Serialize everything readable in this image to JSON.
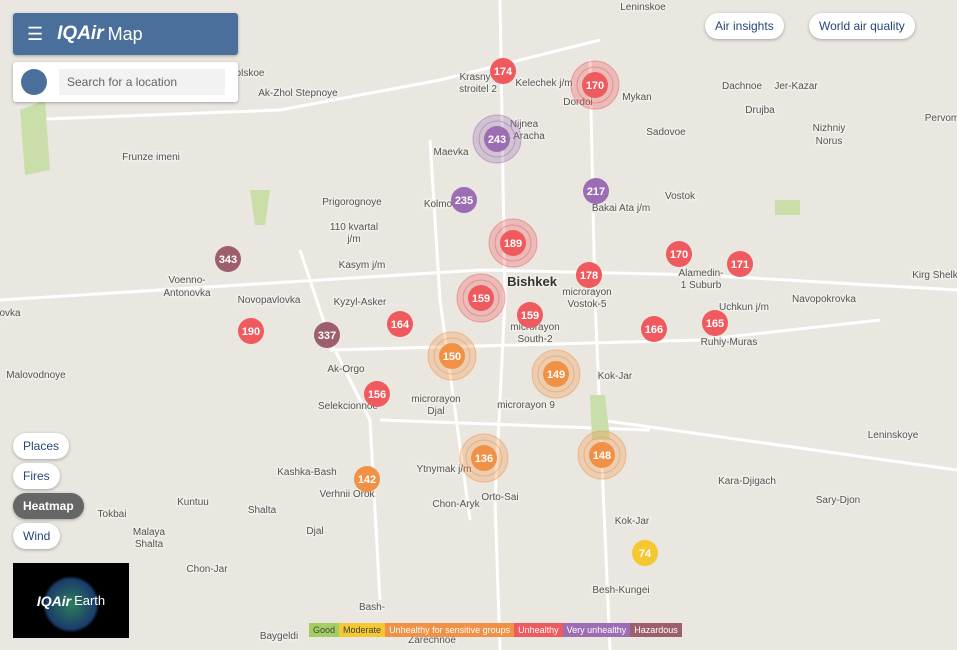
{
  "header": {
    "brand": "IQAir",
    "product": "Map",
    "search_placeholder": "Search for a location"
  },
  "top_buttons": [
    "Air insights",
    "World air quality"
  ],
  "layer_buttons": [
    "Places",
    "Fires",
    "Heatmap",
    "Wind"
  ],
  "earth_card": {
    "brand": "IQAir",
    "product": "Earth"
  },
  "markers": [
    {
      "value": "174",
      "color": "#ef5a5f"
    },
    {
      "value": "170",
      "color": "#ef5a5f"
    },
    {
      "value": "243",
      "color": "#9d6db4"
    },
    {
      "value": "217",
      "color": "#9d6db4"
    },
    {
      "value": "235",
      "color": "#9d6db4"
    },
    {
      "value": "189",
      "color": "#ef5a5f"
    },
    {
      "value": "343",
      "color": "#9e5f6d"
    },
    {
      "value": "170",
      "color": "#ef5a5f"
    },
    {
      "value": "171",
      "color": "#ef5a5f"
    },
    {
      "value": "178",
      "color": "#ef5a5f"
    },
    {
      "value": "159",
      "color": "#ef5a5f"
    },
    {
      "value": "159",
      "color": "#ef5a5f"
    },
    {
      "value": "164",
      "color": "#ef5a5f"
    },
    {
      "value": "190",
      "color": "#ef5a5f"
    },
    {
      "value": "337",
      "color": "#9e5f6d"
    },
    {
      "value": "166",
      "color": "#ef5a5f"
    },
    {
      "value": "165",
      "color": "#ef5a5f"
    },
    {
      "value": "150",
      "color": "#f19145"
    },
    {
      "value": "149",
      "color": "#f19145"
    },
    {
      "value": "156",
      "color": "#ef5a5f"
    },
    {
      "value": "136",
      "color": "#f19145"
    },
    {
      "value": "148",
      "color": "#f19145"
    },
    {
      "value": "142",
      "color": "#f19145"
    },
    {
      "value": "74",
      "color": "#f5c832"
    }
  ],
  "places": [
    "Leninskoe",
    "Krasny",
    "stroitel 2",
    "Kelechek j/m",
    "Dordoi",
    "Mykan",
    "Dachnoe",
    "Jer-Kazar",
    "Drujba",
    "Nizhniy",
    "Norus",
    "Pervom",
    "Sadovoe",
    "Nijnea",
    "Aracha",
    "Maevka",
    "Frunze imeni",
    "olskoe",
    "Ak-Zhol Stepnoye",
    "Bakai Ata j/m",
    "Vostok",
    "Prigorognoye",
    "Kolmo",
    "110 kvartal",
    "j/m",
    "Kasym j/m",
    "Bishkek",
    "Alamedin-",
    "1 Suburb",
    "Kirg Shelk",
    "Voenno-",
    "Antonovka",
    "Novopavlovka",
    "Kyzyl-Asker",
    "Navopokrovka",
    "microrayon",
    "Vostok-5",
    "Uchkun j/m",
    "ovka",
    "Ak-Orgo",
    "microrayon",
    "South-2",
    "Ruhiy-Muras",
    "Malovodnoye",
    "Kok-Jar",
    "Selekcionnoe",
    "microrayon",
    "Djal",
    "microrayon 9",
    "Leninskoye",
    "Ytnymak j/m",
    "Kashka-Bash",
    "Verhnii Orok",
    "Kara-Djigach",
    "Orto-Sai",
    "Kuntuu",
    "Tokbai",
    "Shalta",
    "Chon-Aryk",
    "Sary-Djon",
    "Kok-Jar",
    "Djal",
    "Malaya",
    "Shalta",
    "Chon-Jar",
    "Besh-Kungei",
    "Bash-",
    "Baygeldi",
    "Zarechnoe"
  ],
  "legend": [
    {
      "label": "Good",
      "color": "#a3cf62"
    },
    {
      "label": "Moderate",
      "color": "#f5c832"
    },
    {
      "label": "Unhealthy for sensitive groups",
      "color": "#f19145"
    },
    {
      "label": "Unhealthy",
      "color": "#ef5a5f"
    },
    {
      "label": "Very unhealthy",
      "color": "#9d6db4"
    },
    {
      "label": "Hazardous",
      "color": "#9e5f6d"
    }
  ]
}
